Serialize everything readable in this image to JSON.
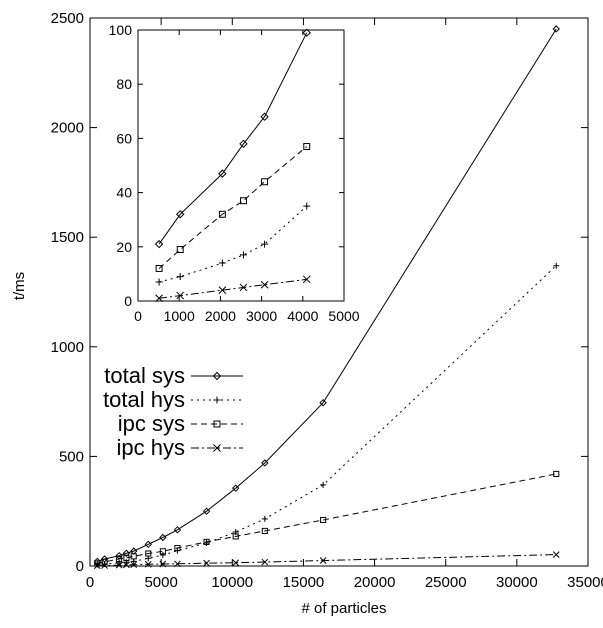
{
  "chart_data": [
    {
      "type": "line",
      "title": "",
      "xlabel": "# of particles",
      "ylabel": "t/ms",
      "xlim": [
        0,
        35000
      ],
      "ylim": [
        0,
        2500
      ],
      "xticks": [
        0,
        5000,
        10000,
        15000,
        20000,
        25000,
        30000,
        35000
      ],
      "yticks": [
        0,
        500,
        1000,
        1500,
        2000,
        2500
      ],
      "grid": false,
      "legend_position": "center-left",
      "series": [
        {
          "name": "total sys",
          "marker": "diamond",
          "line_style": "solid",
          "x": [
            512,
            1024,
            2048,
            2560,
            3072,
            4096,
            5120,
            6144,
            8192,
            10240,
            12288,
            16384,
            32768
          ],
          "y": [
            21,
            32,
            47,
            58,
            68,
            99,
            130,
            165,
            250,
            355,
            470,
            745,
            2450
          ]
        },
        {
          "name": "total hys",
          "marker": "plus",
          "line_style": "dotted",
          "x": [
            512,
            1024,
            2048,
            2560,
            3072,
            4096,
            5120,
            6144,
            8192,
            10240,
            12288,
            16384,
            32768
          ],
          "y": [
            7,
            9,
            14,
            17,
            21,
            35,
            50,
            70,
            105,
            155,
            215,
            370,
            1370
          ]
        },
        {
          "name": "ipc sys",
          "marker": "square",
          "line_style": "dashed",
          "x": [
            512,
            1024,
            2048,
            2560,
            3072,
            4096,
            5120,
            6144,
            8192,
            10240,
            12288,
            16384,
            32768
          ],
          "y": [
            12,
            19,
            32,
            37,
            44,
            57,
            67,
            82,
            110,
            135,
            160,
            210,
            420
          ]
        },
        {
          "name": "ipc hys",
          "marker": "cross",
          "line_style": "dashdot",
          "x": [
            512,
            1024,
            2048,
            2560,
            3072,
            4096,
            5120,
            6144,
            8192,
            10240,
            12288,
            16384,
            32768
          ],
          "y": [
            1,
            2,
            4,
            5,
            6,
            8,
            9,
            10,
            13,
            15,
            18,
            25,
            52
          ]
        }
      ]
    },
    {
      "type": "line",
      "title": "",
      "xlabel": "",
      "ylabel": "",
      "xlim": [
        0,
        5000
      ],
      "ylim": [
        0,
        100
      ],
      "xticks": [
        0,
        1000,
        2000,
        3000,
        4000,
        5000
      ],
      "yticks": [
        0,
        20,
        40,
        60,
        80,
        100
      ],
      "grid": false,
      "series": [
        {
          "marker": "diamond",
          "line_style": "solid",
          "x": [
            512,
            1024,
            2048,
            2560,
            3072,
            4096
          ],
          "y": [
            21,
            32,
            47,
            58,
            68,
            99
          ]
        },
        {
          "marker": "plus",
          "line_style": "dotted",
          "x": [
            512,
            1024,
            2048,
            2560,
            3072,
            4096
          ],
          "y": [
            7,
            9,
            14,
            17,
            21,
            35
          ]
        },
        {
          "marker": "square",
          "line_style": "dashed",
          "x": [
            512,
            1024,
            2048,
            2560,
            3072,
            4096
          ],
          "y": [
            12,
            19,
            32,
            37,
            44,
            57
          ]
        },
        {
          "marker": "cross",
          "line_style": "dashdot",
          "x": [
            512,
            1024,
            2048,
            2560,
            3072,
            4096
          ],
          "y": [
            1,
            2,
            4,
            5,
            6,
            8
          ]
        }
      ]
    }
  ]
}
